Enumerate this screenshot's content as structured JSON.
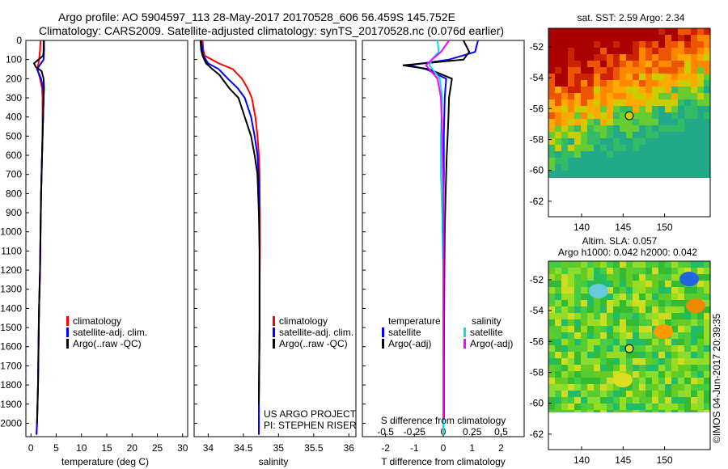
{
  "header": {
    "line1": "Argo profile: AO 5904597_113 28-May-2017 20170528_606 56.459S 145.752E",
    "line2": "Climatology: CARS2009. Satellite-adjusted climatology: synTS_20170528.nc (0.076d earlier)"
  },
  "colors": {
    "climatology": "#ff0000",
    "satellite": "#0000ff",
    "argo": "#000000",
    "salinity_satellite": "#00e0e0",
    "salinity_argo": "#ff00ff"
  },
  "legend": {
    "climatology": "climatology",
    "satellite_adj": "satellite-adj. clim.",
    "argo_raw": "Argo(..raw -QC)",
    "temperature_title": "temperature",
    "salinity_title": "salinity",
    "satellite": "satellite",
    "argo_adj": "Argo(-adj)"
  },
  "credits": {
    "project": "US ARGO PROJECT",
    "pi": "PI: STEPHEN RISER",
    "imos": "©IMOS 04-Jun-2017 20:39:35"
  },
  "maps": {
    "sst_title": "sat. SST: 2.59 Argo: 2.34",
    "sla_title1": "Altim. SLA: 0.057",
    "sla_title2": "Argo h1000: 0.042 h2000: 0.042",
    "lat_ticks": [
      "-52",
      "-54",
      "-56",
      "-58",
      "-60",
      "-62"
    ],
    "lon_ticks": [
      "140",
      "145",
      "150"
    ],
    "marker": {
      "lon": 145.75,
      "lat": -56.46
    }
  },
  "chart_data": [
    {
      "type": "line",
      "id": "temperature",
      "xlabel": "temperature (deg C)",
      "ylabel": "",
      "xlim": [
        -1,
        31
      ],
      "ylim": [
        2070,
        0
      ],
      "xticks": [
        0,
        5,
        10,
        15,
        20,
        25,
        30
      ],
      "xtick_labels": [
        "0",
        "5",
        "10",
        "15",
        "20",
        "25",
        "30"
      ],
      "yticks": [
        0,
        100,
        200,
        300,
        400,
        500,
        600,
        700,
        800,
        900,
        1000,
        1100,
        1200,
        1300,
        1400,
        1500,
        1600,
        1700,
        1800,
        1900,
        2000
      ],
      "ytick_labels": [
        "0",
        "100",
        "200",
        "300",
        "400",
        "500",
        "600",
        "700",
        "800",
        "900",
        "1000",
        "1100",
        "1200",
        "1300",
        "1400",
        "1500",
        "1600",
        "1700",
        "1800",
        "1900",
        "2000"
      ],
      "series": [
        {
          "name": "climatology",
          "x": [
            1.9,
            1.8,
            1.6,
            1.3,
            1.8,
            2.2,
            2.3,
            2.3,
            2.3,
            2.2,
            2.1,
            2.0,
            1.9,
            1.8,
            1.6,
            1.5,
            1.4,
            1.2,
            1.1
          ],
          "y": [
            0,
            50,
            100,
            150,
            200,
            250,
            300,
            400,
            500,
            600,
            700,
            800,
            1000,
            1200,
            1400,
            1600,
            1800,
            2000,
            2060
          ]
        },
        {
          "name": "satellite-adj. clim.",
          "x": [
            2.6,
            2.6,
            2.5,
            1.2,
            2.0,
            2.4,
            2.5,
            2.4,
            2.3,
            2.2,
            2.1,
            2.0,
            1.9,
            1.8,
            1.6,
            1.5,
            1.4,
            1.2,
            1.1
          ],
          "y": [
            0,
            50,
            100,
            150,
            200,
            250,
            300,
            400,
            500,
            600,
            700,
            800,
            1000,
            1200,
            1400,
            1600,
            1800,
            2000,
            2060
          ]
        },
        {
          "name": "Argo(..raw -QC)",
          "x": [
            2.5,
            2.5,
            2.4,
            0.6,
            1.0,
            2.1,
            2.5,
            2.6,
            2.5,
            2.4,
            2.3,
            2.2,
            2.1,
            2.0,
            1.9,
            1.8,
            1.6,
            1.5,
            1.4,
            1.2
          ],
          "y": [
            0,
            50,
            80,
            120,
            140,
            160,
            200,
            250,
            300,
            400,
            500,
            600,
            700,
            800,
            1000,
            1200,
            1400,
            1600,
            1800,
            2000
          ]
        }
      ]
    },
    {
      "type": "line",
      "id": "salinity",
      "xlabel": "salinity",
      "ylabel": "",
      "xlim": [
        33.8,
        36.1
      ],
      "ylim": [
        2070,
        0
      ],
      "xticks": [
        34,
        34.5,
        35,
        35.5,
        36
      ],
      "xtick_labels": [
        "34",
        "34.5",
        "35",
        "35.5",
        "36"
      ],
      "series": [
        {
          "name": "climatology",
          "x": [
            33.92,
            33.93,
            33.95,
            34.15,
            34.35,
            34.48,
            34.56,
            34.62,
            34.67,
            34.7,
            34.72,
            34.73,
            34.735,
            34.735,
            34.73,
            34.73,
            34.725,
            34.72,
            34.72
          ],
          "y": [
            0,
            50,
            80,
            120,
            150,
            200,
            250,
            300,
            400,
            500,
            600,
            700,
            900,
            1100,
            1300,
            1500,
            1700,
            1900,
            2060
          ]
        },
        {
          "name": "satellite-adj. clim.",
          "x": [
            33.9,
            33.92,
            33.93,
            34.0,
            34.15,
            34.28,
            34.42,
            34.52,
            34.61,
            34.66,
            34.7,
            34.715,
            34.725,
            34.73,
            34.73,
            34.73,
            34.725,
            34.72,
            34.72
          ],
          "y": [
            0,
            50,
            80,
            120,
            150,
            200,
            250,
            300,
            400,
            500,
            600,
            700,
            900,
            1100,
            1300,
            1500,
            1700,
            1900,
            2060
          ]
        },
        {
          "name": "Argo(..raw -QC)",
          "x": [
            33.89,
            33.9,
            33.92,
            33.97,
            34.06,
            34.16,
            34.3,
            34.43,
            34.52,
            34.61,
            34.66,
            34.7,
            34.72,
            34.73,
            34.73,
            34.73,
            34.725,
            34.72
          ],
          "y": [
            0,
            50,
            80,
            120,
            150,
            180,
            250,
            300,
            400,
            500,
            600,
            700,
            900,
            1100,
            1300,
            1500,
            1700,
            1900
          ]
        }
      ]
    },
    {
      "type": "line",
      "id": "difference",
      "xlabel": "T difference from climatology",
      "xlabel2": "S difference from climatology",
      "ylabel": "",
      "xlim": [
        -2.8,
        2.8
      ],
      "ylim": [
        2070,
        0
      ],
      "xticks": [
        -2,
        -1,
        0,
        1,
        2
      ],
      "xtick_labels": [
        "-2",
        "-1",
        "0",
        "1",
        "2"
      ],
      "xticks2": [
        -0.5,
        -0.25,
        0,
        0.25,
        0.5
      ],
      "xtick_labels2": [
        "-0.5",
        "-0.25",
        "0",
        "0.25",
        "0.5"
      ],
      "series": [
        {
          "name": "temperature satellite",
          "x": [
            1.2,
            1.1,
            0.2,
            -1.2,
            -0.6,
            0.1,
            0.05,
            0.02,
            0.02,
            0.0,
            0.0,
            0.0,
            0.0,
            0.0,
            0.0,
            0.0
          ],
          "y": [
            0,
            60,
            100,
            130,
            150,
            200,
            300,
            500,
            700,
            900,
            1100,
            1300,
            1500,
            1700,
            1900,
            2060
          ]
        },
        {
          "name": "temperature Argo(-adj)",
          "x": [
            0.7,
            0.9,
            0.7,
            -1.4,
            -0.5,
            0.3,
            0.2,
            0.18,
            0.15,
            0.12,
            0.08,
            0.05,
            0.04,
            0.03,
            0.02,
            0.02
          ],
          "y": [
            0,
            60,
            100,
            130,
            150,
            200,
            300,
            400,
            500,
            600,
            800,
            1000,
            1200,
            1400,
            1700,
            1980
          ]
        },
        {
          "name": "salinity satellite",
          "x": [
            -0.05,
            -0.04,
            -0.1,
            -0.12,
            -0.03,
            -0.01,
            -0.02,
            -0.02,
            -0.01,
            0.0,
            0.0,
            0.0,
            0.0
          ],
          "y": [
            0,
            60,
            100,
            130,
            200,
            300,
            500,
            700,
            900,
            1200,
            1500,
            1800,
            2060
          ]
        },
        {
          "name": "salinity Argo(-adj)",
          "x": [
            0.05,
            -0.02,
            -0.1,
            -0.15,
            -0.05,
            -0.02,
            -0.01,
            0.0,
            0.0,
            0.0
          ],
          "y": [
            0,
            60,
            100,
            130,
            200,
            300,
            500,
            800,
            1200,
            1980
          ]
        }
      ]
    }
  ]
}
